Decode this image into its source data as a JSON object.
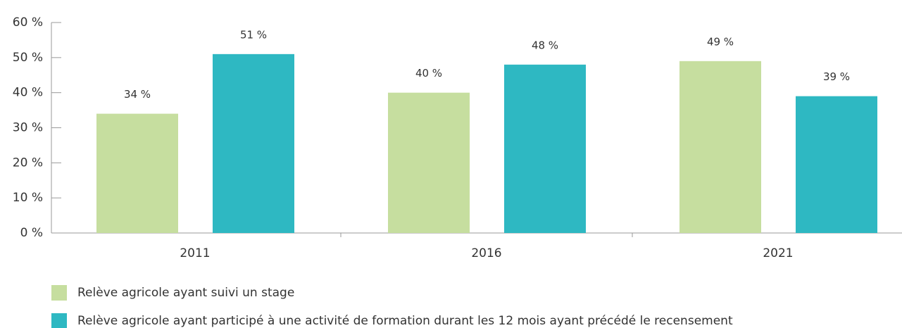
{
  "chart_data": {
    "type": "bar",
    "categories": [
      "2011",
      "2016",
      "2021"
    ],
    "series": [
      {
        "name": "Relève agricole ayant suivi un stage",
        "color": "#c6de9f",
        "values": [
          34,
          40,
          49
        ],
        "value_labels": [
          "34 %",
          "40 %",
          "49 %"
        ]
      },
      {
        "name": "Relève agricole ayant participé à une activité de formation durant les 12 mois ayant précédé le recensement",
        "color": "#2eb8c2",
        "values": [
          51,
          48,
          39
        ],
        "value_labels": [
          "51 %",
          "48 %",
          "39 %"
        ]
      }
    ],
    "ylim": [
      0,
      60
    ],
    "yticks": [
      {
        "value": 0,
        "label": "0 %"
      },
      {
        "value": 10,
        "label": "10 %"
      },
      {
        "value": 20,
        "label": "20 %"
      },
      {
        "value": 30,
        "label": "30 %"
      },
      {
        "value": 40,
        "label": "40 %"
      },
      {
        "value": 50,
        "label": "50 %"
      },
      {
        "value": 60,
        "label": "60 %"
      }
    ],
    "legend": "bottom-left"
  }
}
